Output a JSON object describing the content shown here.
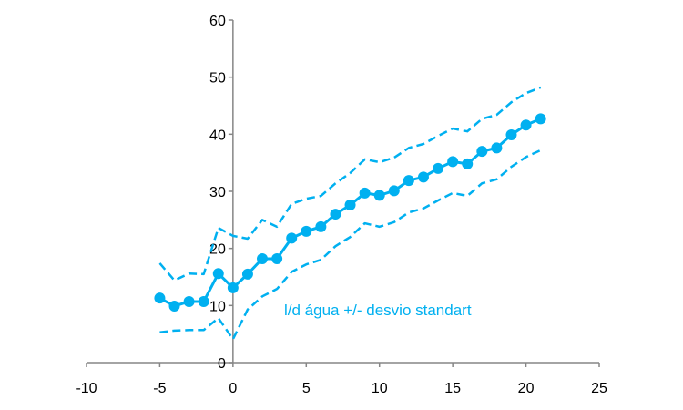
{
  "chart_data": {
    "type": "line",
    "title": "",
    "xlabel": "",
    "ylabel": "",
    "xlim": [
      -10,
      25
    ],
    "ylim": [
      0,
      60
    ],
    "xticks": [
      -10,
      -5,
      0,
      5,
      10,
      15,
      20,
      25
    ],
    "yticks": [
      0,
      10,
      20,
      30,
      40,
      50,
      60
    ],
    "grid": false,
    "color": "#00b0f0",
    "axis_color": "#868686",
    "annotation": "l/d água +/- desvio standart",
    "x": [
      -5,
      -4,
      -3,
      -2,
      -1,
      0,
      1,
      2,
      3,
      4,
      5,
      6,
      7,
      8,
      9,
      10,
      11,
      12,
      13,
      14,
      15,
      16,
      17,
      18,
      19,
      20,
      21
    ],
    "series": [
      {
        "style": "solid-markers",
        "values": [
          11.3,
          9.9,
          10.7,
          10.7,
          15.6,
          13.1,
          15.5,
          18.2,
          18.2,
          21.8,
          23.0,
          23.8,
          26.0,
          27.6,
          29.7,
          29.3,
          30.1,
          31.9,
          32.5,
          34.0,
          35.2,
          34.8,
          37.0,
          37.6,
          39.9,
          41.6,
          42.7
        ]
      },
      {
        "style": "dashed",
        "values": [
          17.4,
          14.4,
          15.6,
          15.5,
          23.6,
          22.2,
          21.7,
          25.0,
          23.8,
          27.8,
          28.7,
          29.2,
          31.4,
          33.2,
          35.6,
          35.1,
          35.9,
          37.6,
          38.3,
          39.7,
          41.0,
          40.5,
          42.7,
          43.4,
          45.6,
          47.2,
          48.2
        ]
      },
      {
        "style": "dashed",
        "values": [
          5.3,
          5.6,
          5.7,
          5.7,
          7.8,
          4.1,
          9.3,
          11.6,
          12.9,
          15.9,
          17.2,
          18.0,
          20.4,
          22.0,
          24.4,
          23.8,
          24.6,
          26.3,
          27.0,
          28.4,
          29.7,
          29.2,
          31.4,
          32.1,
          34.3,
          36.0,
          37.2
        ]
      }
    ]
  }
}
